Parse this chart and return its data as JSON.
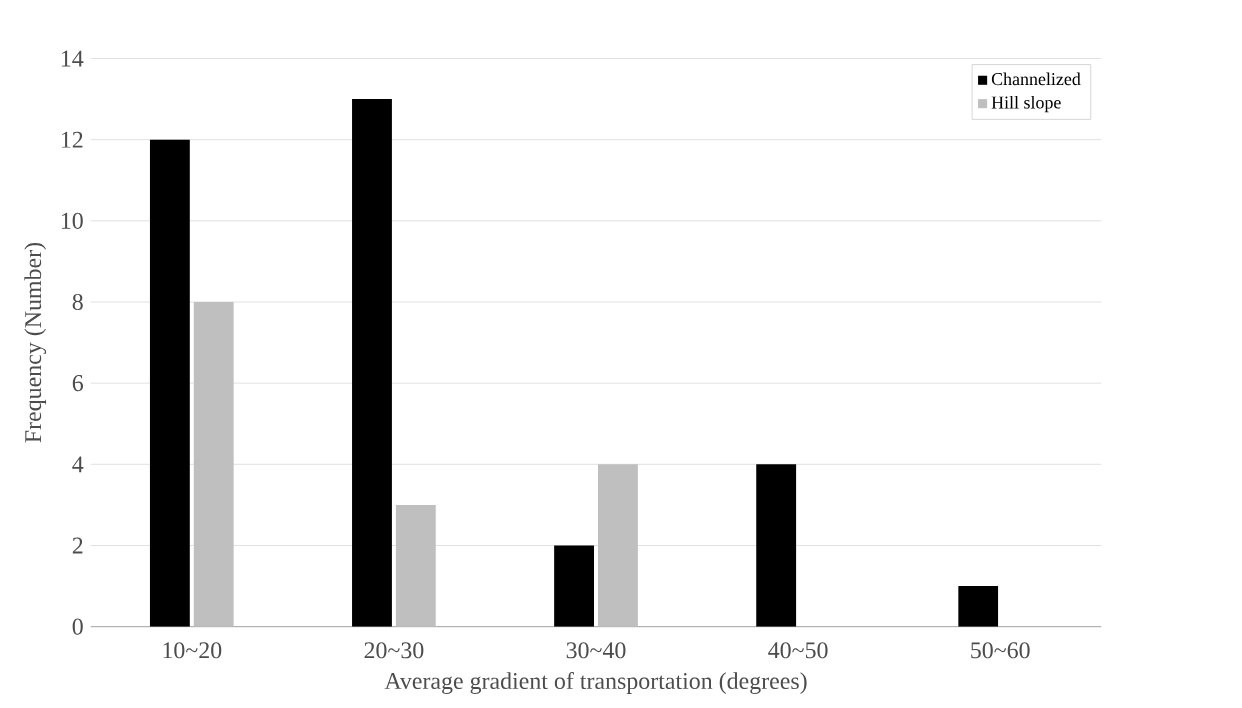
{
  "chart_data": {
    "type": "bar",
    "xlabel": "Average gradient of transportation (degrees)",
    "ylabel": "Frequency (Number)",
    "categories": [
      "10~20",
      "20~30",
      "30~40",
      "40~50",
      "50~60"
    ],
    "series": [
      {
        "name": "Channelized",
        "color": "#000000",
        "values": [
          12,
          13,
          2,
          4,
          1
        ]
      },
      {
        "name": "Hill slope",
        "color": "#bfbfbf",
        "values": [
          8,
          3,
          4,
          0,
          0
        ]
      }
    ],
    "ylim": [
      0,
      14
    ],
    "yticks": [
      0,
      2,
      4,
      6,
      8,
      10,
      12,
      14
    ],
    "grid": "y",
    "legend": "top right"
  }
}
